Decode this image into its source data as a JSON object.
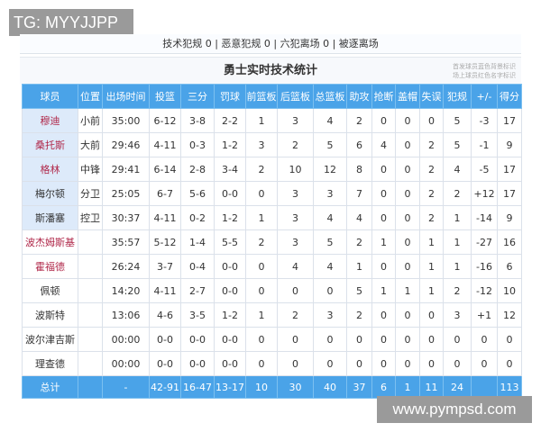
{
  "watermark_top": "TG: MYYJJPP",
  "watermark_bottom": "www.pympsd.com",
  "foul_strip": "技术犯规 0 | 恶意犯规 0 | 六犯离场 0 | 被逐离场",
  "title": "勇士实时技术统计",
  "note": [
    "首发球员蓝色背景标识",
    "场上球员红色名字标识"
  ],
  "colors": {
    "header": "#4aa3e8",
    "starter_bg": "#ddeafa",
    "on_court_name": "#b0284a"
  },
  "columns": [
    "球员",
    "位置",
    "出场时间",
    "投篮",
    "三分",
    "罚球",
    "前篮板",
    "后篮板",
    "总篮板",
    "助攻",
    "抢断",
    "盖帽",
    "失误",
    "犯规",
    "+/-",
    "得分"
  ],
  "rows": [
    {
      "starter": true,
      "on_court": true,
      "cells": [
        "穆迪",
        "小前",
        "35:00",
        "6-12",
        "3-8",
        "2-2",
        "1",
        "3",
        "4",
        "2",
        "0",
        "0",
        "0",
        "5",
        "-3",
        "17"
      ]
    },
    {
      "starter": true,
      "on_court": true,
      "cells": [
        "桑托斯",
        "大前",
        "29:46",
        "4-11",
        "0-3",
        "1-2",
        "3",
        "2",
        "5",
        "6",
        "4",
        "0",
        "2",
        "5",
        "-1",
        "9"
      ]
    },
    {
      "starter": true,
      "on_court": true,
      "cells": [
        "格林",
        "中锋",
        "29:41",
        "6-14",
        "2-8",
        "3-4",
        "2",
        "10",
        "12",
        "8",
        "0",
        "0",
        "2",
        "4",
        "-5",
        "17"
      ]
    },
    {
      "starter": true,
      "on_court": false,
      "cells": [
        "梅尔顿",
        "分卫",
        "25:05",
        "6-7",
        "5-6",
        "0-0",
        "0",
        "3",
        "3",
        "7",
        "0",
        "0",
        "2",
        "2",
        "+12",
        "17"
      ]
    },
    {
      "starter": true,
      "on_court": false,
      "cells": [
        "斯潘塞",
        "控卫",
        "30:37",
        "4-11",
        "0-2",
        "1-2",
        "1",
        "3",
        "4",
        "4",
        "0",
        "0",
        "2",
        "1",
        "-14",
        "9"
      ]
    },
    {
      "starter": false,
      "on_court": true,
      "cells": [
        "波杰姆斯基",
        "",
        "35:57",
        "5-12",
        "1-4",
        "5-5",
        "2",
        "3",
        "5",
        "2",
        "1",
        "0",
        "1",
        "1",
        "-27",
        "16"
      ]
    },
    {
      "starter": false,
      "on_court": true,
      "cells": [
        "霍福德",
        "",
        "26:24",
        "3-7",
        "0-4",
        "0-0",
        "0",
        "4",
        "4",
        "1",
        "0",
        "0",
        "1",
        "1",
        "-16",
        "6"
      ]
    },
    {
      "starter": false,
      "on_court": false,
      "cells": [
        "佩顿",
        "",
        "14:20",
        "4-11",
        "2-7",
        "0-0",
        "0",
        "0",
        "0",
        "5",
        "1",
        "1",
        "1",
        "2",
        "-12",
        "10"
      ]
    },
    {
      "starter": false,
      "on_court": false,
      "cells": [
        "波斯特",
        "",
        "13:06",
        "4-6",
        "3-5",
        "1-2",
        "1",
        "2",
        "3",
        "2",
        "0",
        "0",
        "0",
        "3",
        "+1",
        "12"
      ]
    },
    {
      "starter": false,
      "on_court": false,
      "cells": [
        "波尔津吉斯",
        "",
        "00:00",
        "0-0",
        "0-0",
        "0-0",
        "0",
        "0",
        "0",
        "0",
        "0",
        "0",
        "0",
        "0",
        "0",
        "0"
      ]
    },
    {
      "starter": false,
      "on_court": false,
      "cells": [
        "理查德",
        "",
        "00:00",
        "0-0",
        "0-0",
        "0-0",
        "0",
        "0",
        "0",
        "0",
        "0",
        "0",
        "0",
        "0",
        "0",
        "0"
      ]
    }
  ],
  "total": [
    "总计",
    "",
    "-",
    "42-91",
    "16-47",
    "13-17",
    "10",
    "30",
    "40",
    "37",
    "6",
    "1",
    "11",
    "24",
    "",
    "113"
  ]
}
